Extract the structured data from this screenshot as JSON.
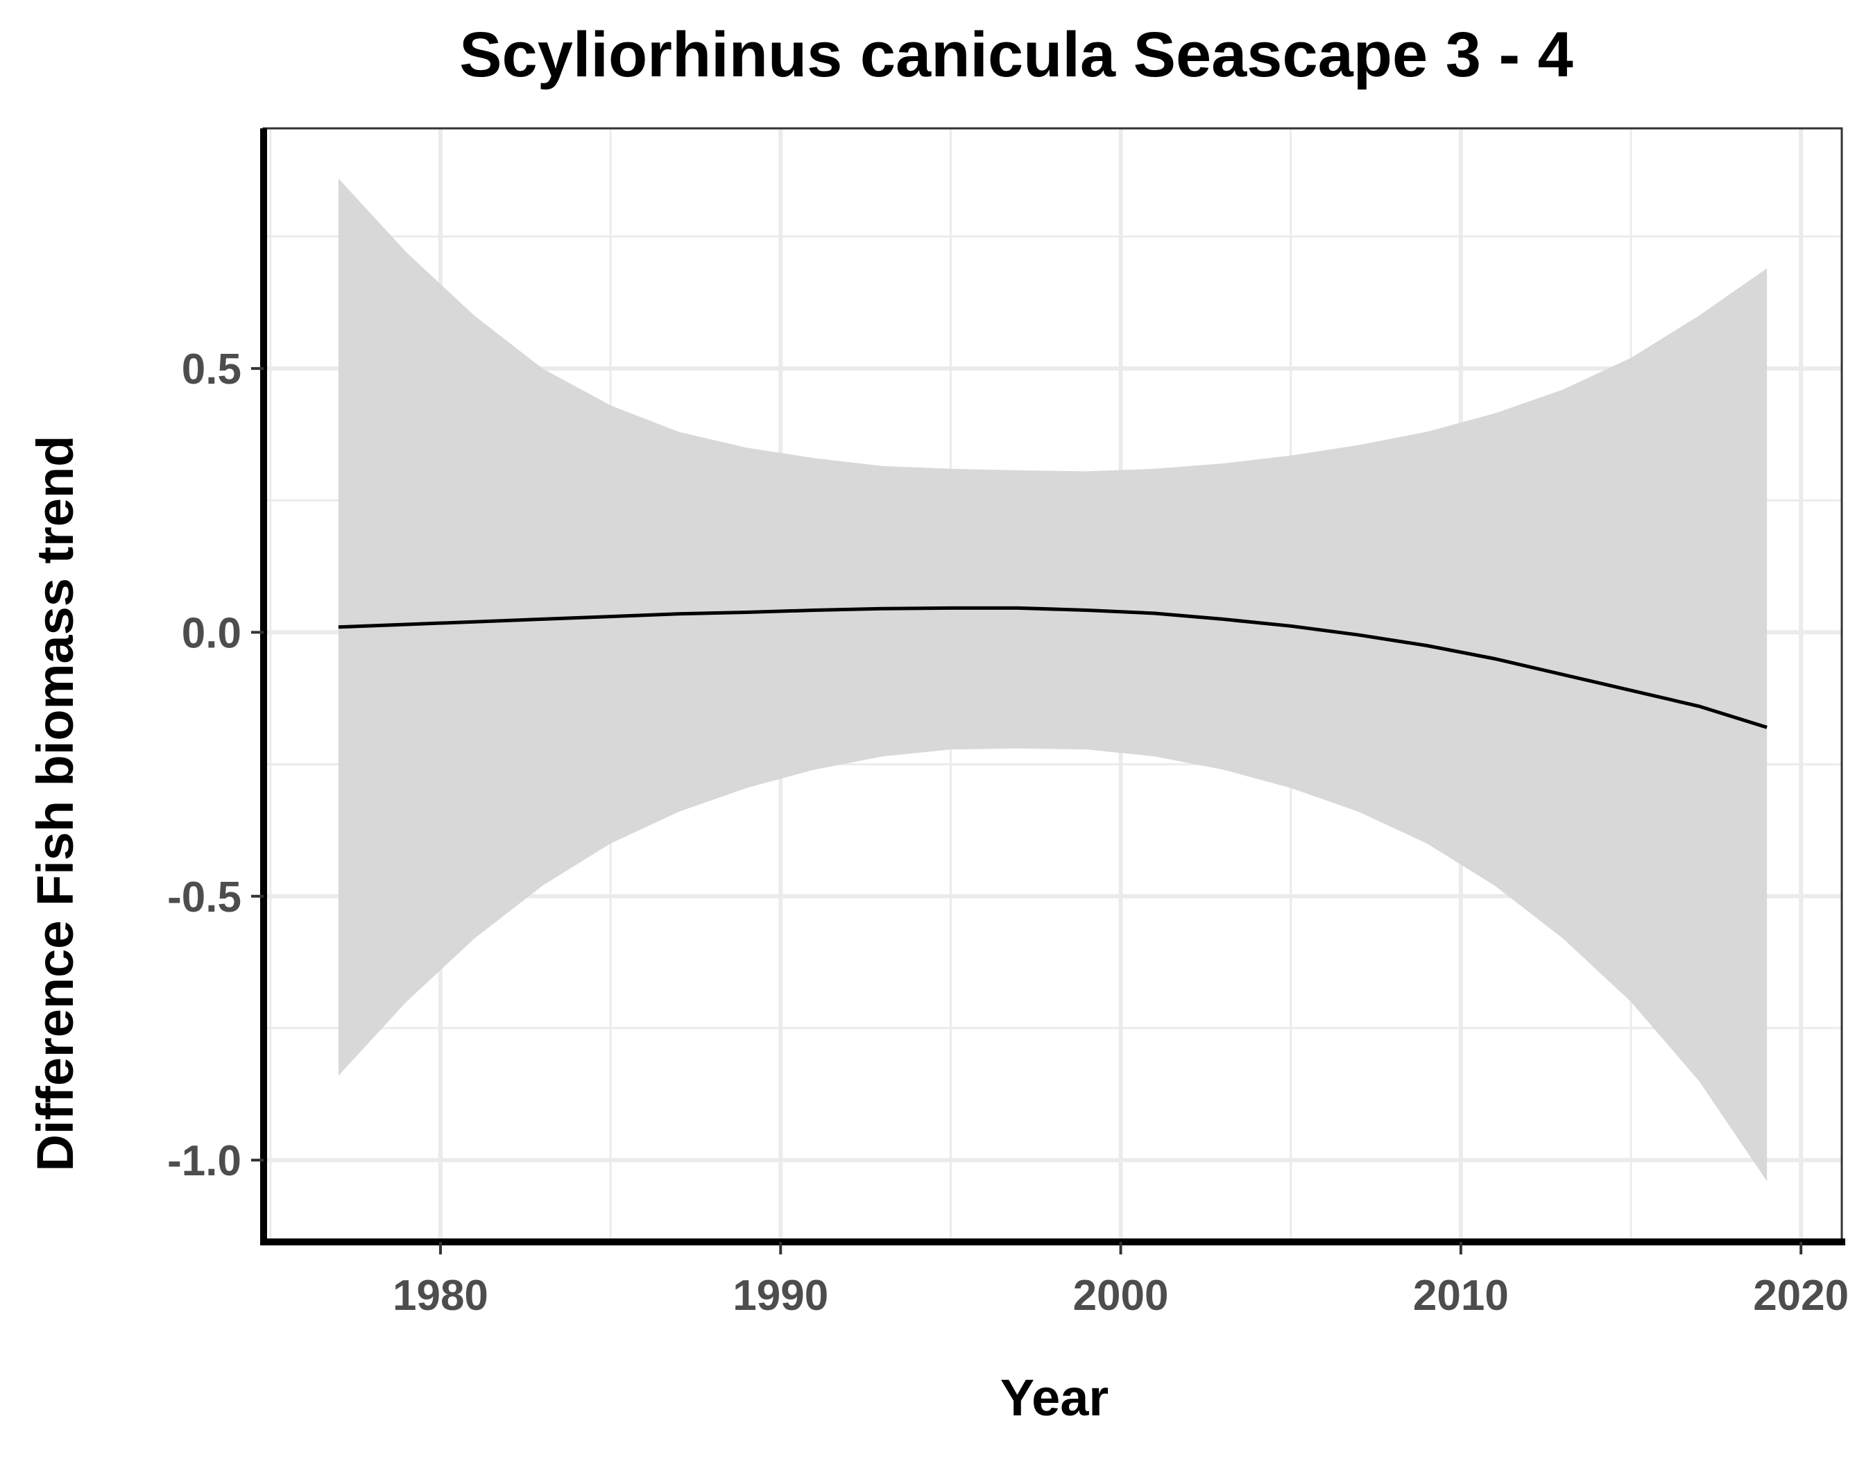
{
  "chart_data": {
    "type": "line",
    "title": "Scyliorhinus canicula Seascape 3 - 4",
    "xlabel": "Year",
    "ylabel": "Difference Fish biomass trend",
    "xlim": [
      1974.8,
      2021.2
    ],
    "ylim": [
      -1.155,
      0.955
    ],
    "x_ticks": [
      1980,
      1990,
      2000,
      2010,
      2020
    ],
    "x_tick_labels": [
      "1980",
      "1990",
      "2000",
      "2010",
      "2020"
    ],
    "x_minor_ticks": [
      1975,
      1985,
      1995,
      2005,
      2015
    ],
    "y_ticks": [
      -1.0,
      -0.5,
      0.0,
      0.5
    ],
    "y_tick_labels": [
      "-1.0",
      "-0.5",
      "0.0",
      "0.5"
    ],
    "y_minor_ticks": [
      -0.75,
      -0.25,
      0.25,
      0.75
    ],
    "grid": true,
    "colors": {
      "line": "#000000",
      "ribbon": "#d6d6d6",
      "grid": "#ebebeb",
      "panel_border": "#333333"
    },
    "series": [
      {
        "x": [
          1977,
          1979,
          1981,
          1983,
          1985,
          1987,
          1989,
          1991,
          1993,
          1995,
          1997,
          1999,
          2001,
          2003,
          2005,
          2007,
          2009,
          2011,
          2013,
          2015,
          2017,
          2019
        ],
        "y": [
          0.01,
          0.015,
          0.02,
          0.025,
          0.03,
          0.035,
          0.038,
          0.042,
          0.045,
          0.046,
          0.046,
          0.042,
          0.036,
          0.025,
          0.012,
          -0.005,
          -0.025,
          -0.05,
          -0.08,
          -0.11,
          -0.14,
          -0.18
        ],
        "lower": [
          -0.84,
          -0.7,
          -0.58,
          -0.48,
          -0.4,
          -0.34,
          -0.295,
          -0.26,
          -0.235,
          -0.222,
          -0.22,
          -0.222,
          -0.235,
          -0.26,
          -0.295,
          -0.34,
          -0.4,
          -0.48,
          -0.58,
          -0.7,
          -0.85,
          -1.04
        ],
        "upper": [
          0.86,
          0.72,
          0.6,
          0.5,
          0.43,
          0.38,
          0.35,
          0.33,
          0.315,
          0.31,
          0.307,
          0.305,
          0.31,
          0.32,
          0.335,
          0.355,
          0.38,
          0.415,
          0.46,
          0.52,
          0.6,
          0.69
        ]
      }
    ]
  }
}
